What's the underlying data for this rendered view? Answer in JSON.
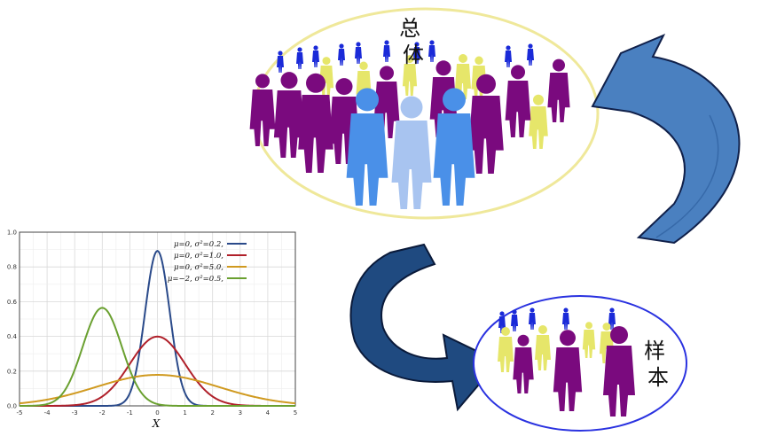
{
  "diagram": {
    "population_label": "总体",
    "sample_label": "样本"
  },
  "colors": {
    "purple": "#7a0a7e",
    "yellow": "#e6e66a",
    "blue": "#1a2ad8",
    "light_blue": "#4a90e8",
    "pale_blue": "#a8c4f0",
    "arrow_light": "#4a80c0",
    "arrow_dark": "#1f4a80"
  },
  "chart_data": {
    "type": "line",
    "xlabel": "X",
    "ylabel": "",
    "xlim": [
      -5,
      5
    ],
    "ylim": [
      0,
      1.0
    ],
    "xticks": [
      "-5",
      "-4",
      "-3",
      "-2",
      "-1",
      "0",
      "1",
      "2",
      "3",
      "4",
      "5"
    ],
    "yticks": [
      "0.0",
      "0.2",
      "0.4",
      "0.6",
      "0.8",
      "1.0"
    ],
    "grid": true,
    "legend_position": "top-right",
    "series": [
      {
        "name": "μ=0,   σ²=0.2,",
        "mu": 0,
        "var": 0.2,
        "color": "#2a4a8a"
      },
      {
        "name": "μ=0,   σ²=1.0,",
        "mu": 0,
        "var": 1.0,
        "color": "#b0202a"
      },
      {
        "name": "μ=0,   σ²=5.0,",
        "mu": 0,
        "var": 5.0,
        "color": "#d09a20"
      },
      {
        "name": "μ=−2, σ²=0.5,",
        "mu": -2,
        "var": 0.5,
        "color": "#6aa030"
      }
    ]
  }
}
